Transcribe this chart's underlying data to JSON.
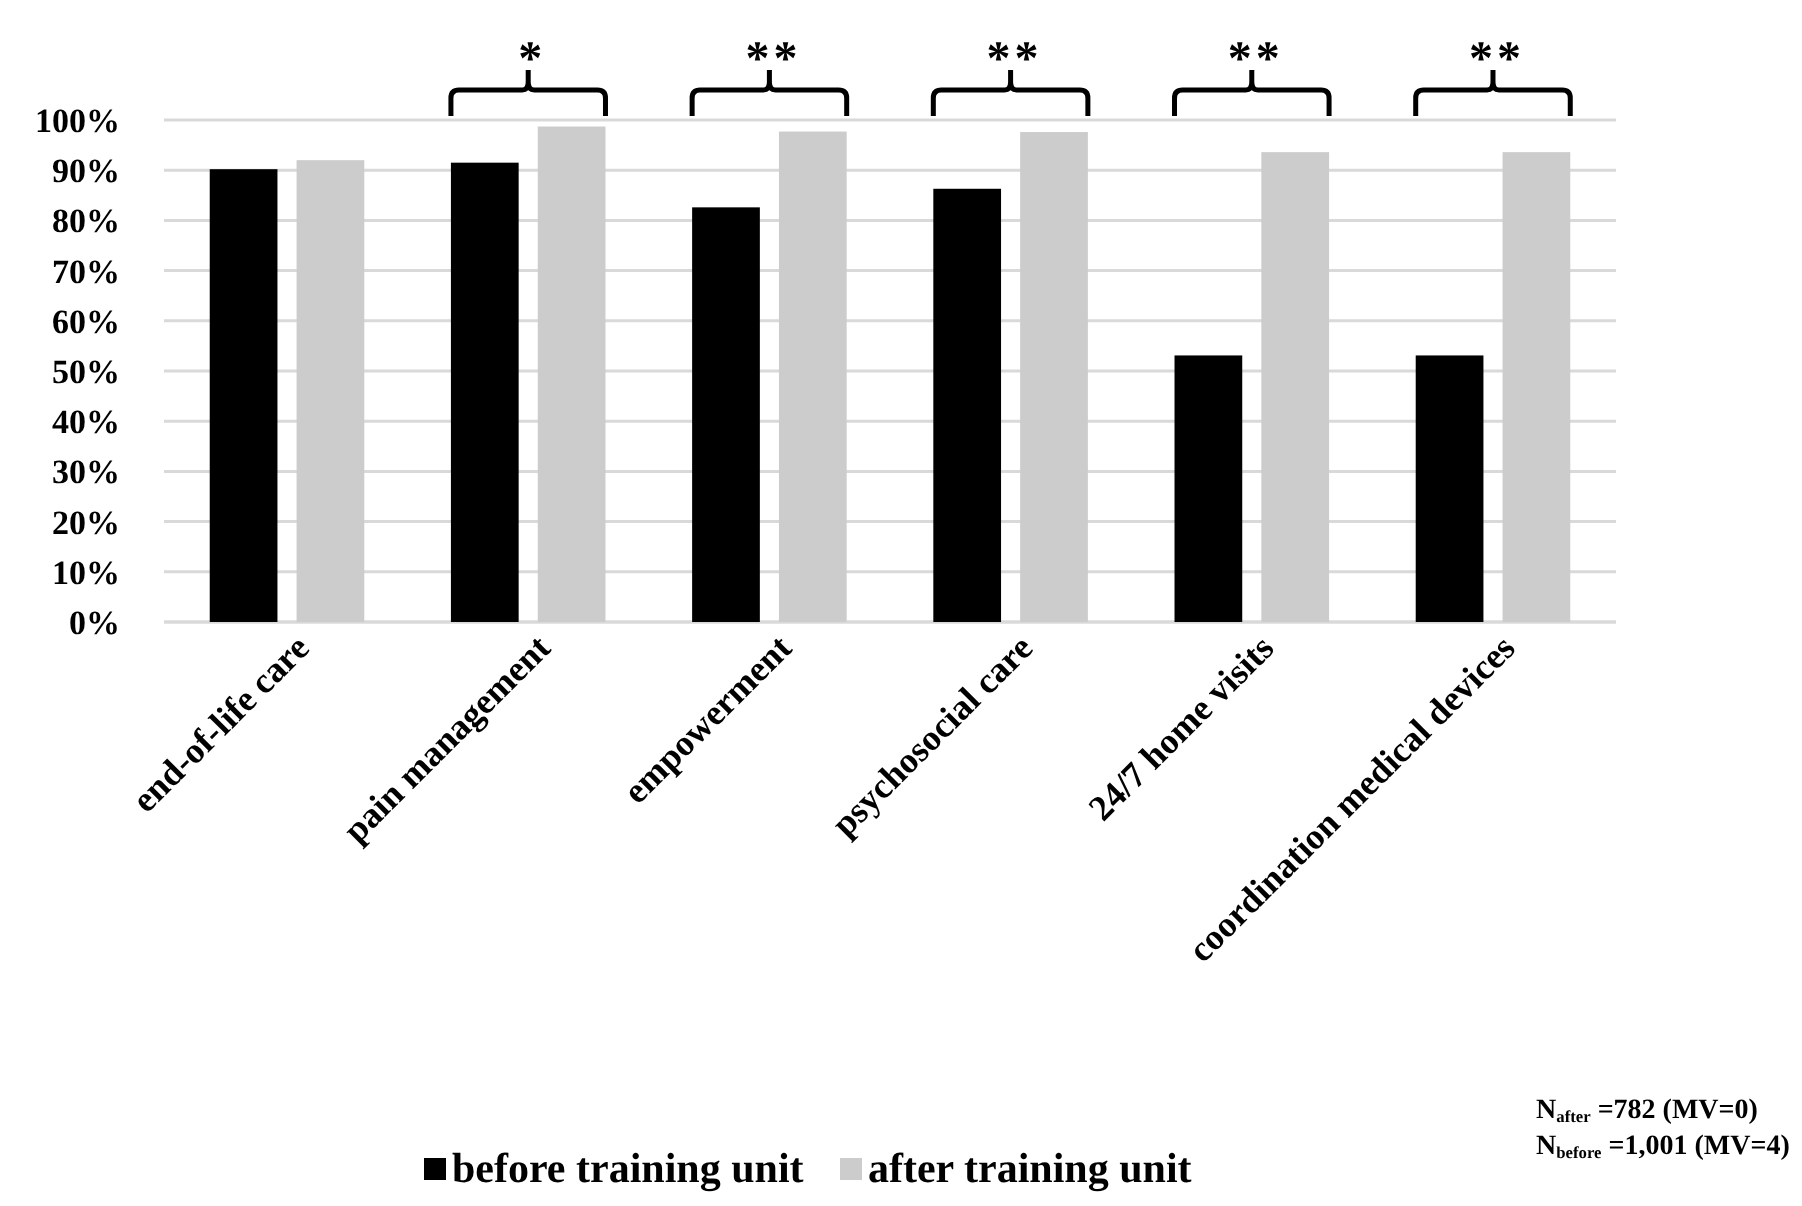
{
  "chart_data": {
    "type": "bar",
    "categories": [
      "end-of-life care",
      "pain management",
      "empowerment",
      "psychosocial care",
      "24/7 home visits",
      "coordination medical devices"
    ],
    "series": [
      {
        "name": "before training unit",
        "color": "#000000",
        "values": [
          90.2,
          91.5,
          82.6,
          86.3,
          53.1,
          53.1
        ]
      },
      {
        "name": "after training unit",
        "color": "#cccccc",
        "values": [
          92,
          98.7,
          97.7,
          97.6,
          93.6,
          93.6
        ]
      }
    ],
    "ylim": [
      0,
      100
    ],
    "yticks": [
      {
        "value": 0,
        "label": "0%"
      },
      {
        "value": 10,
        "label": "10%"
      },
      {
        "value": 20,
        "label": "20%"
      },
      {
        "value": 30,
        "label": "30%"
      },
      {
        "value": 40,
        "label": "40%"
      },
      {
        "value": 50,
        "label": "50%"
      },
      {
        "value": 60,
        "label": "60%"
      },
      {
        "value": 70,
        "label": "70%"
      },
      {
        "value": 80,
        "label": "80%"
      },
      {
        "value": 90,
        "label": "90%"
      },
      {
        "value": 100,
        "label": "100%"
      }
    ],
    "grid": "y",
    "legend": "bottom",
    "annotations": [
      "*",
      "* *",
      "* *",
      "* *",
      "* *",
      "N$_{after}$ =782 (MV=0)",
      "N$_{before}$ =1,001 (MV=4)"
    ]
  }
}
